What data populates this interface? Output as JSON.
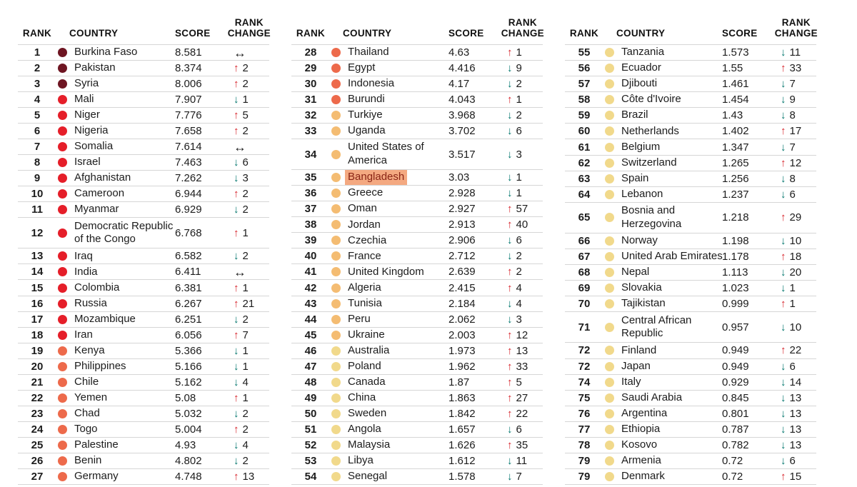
{
  "colors": {
    "maroon": "#6e1522",
    "red": "#e51e29",
    "coral": "#ed6a4b",
    "light_orange": "#f4bc72",
    "yellow": "#f1d98b",
    "up_arrow": "#d6232b",
    "down_arrow": "#00756c",
    "no_change": "#1c1c1c",
    "highlight_bg": "#f4a981",
    "highlight_text": "#8a2516",
    "divider": "#d6d6d6"
  },
  "chart_data": {
    "type": "table",
    "columns": {
      "rank": "RANK",
      "country": "COUNTRY",
      "score": "SCORE",
      "rank_change": "RANK\nCHANGE"
    },
    "tables": [
      {
        "rows": [
          {
            "r": "1",
            "c": "Burkina Faso",
            "s": "8.581",
            "d": "same",
            "v": null,
            "t": "maroon"
          },
          {
            "r": "2",
            "c": "Pakistan",
            "s": "8.374",
            "d": "up",
            "v": "2",
            "t": "maroon"
          },
          {
            "r": "3",
            "c": "Syria",
            "s": "8.006",
            "d": "up",
            "v": "2",
            "t": "maroon"
          },
          {
            "r": "4",
            "c": "Mali",
            "s": "7.907",
            "d": "down",
            "v": "1",
            "t": "red"
          },
          {
            "r": "5",
            "c": "Niger",
            "s": "7.776",
            "d": "up",
            "v": "5",
            "t": "red"
          },
          {
            "r": "6",
            "c": "Nigeria",
            "s": "7.658",
            "d": "up",
            "v": "2",
            "t": "red"
          },
          {
            "r": "7",
            "c": "Somalia",
            "s": "7.614",
            "d": "same",
            "v": null,
            "t": "red"
          },
          {
            "r": "8",
            "c": "Israel",
            "s": "7.463",
            "d": "down",
            "v": "6",
            "t": "red"
          },
          {
            "r": "9",
            "c": "Afghanistan",
            "s": "7.262",
            "d": "down",
            "v": "3",
            "t": "red"
          },
          {
            "r": "10",
            "c": "Cameroon",
            "s": "6.944",
            "d": "up",
            "v": "2",
            "t": "red"
          },
          {
            "r": "11",
            "c": "Myanmar",
            "s": "6.929",
            "d": "down",
            "v": "2",
            "t": "red"
          },
          {
            "r": "12",
            "c": "Democratic Republic\nof the Congo",
            "s": "6.768",
            "d": "up",
            "v": "1",
            "t": "red"
          },
          {
            "r": "13",
            "c": "Iraq",
            "s": "6.582",
            "d": "down",
            "v": "2",
            "t": "red"
          },
          {
            "r": "14",
            "c": "India",
            "s": "6.411",
            "d": "same",
            "v": null,
            "t": "red"
          },
          {
            "r": "15",
            "c": "Colombia",
            "s": "6.381",
            "d": "up",
            "v": "1",
            "t": "red"
          },
          {
            "r": "16",
            "c": "Russia",
            "s": "6.267",
            "d": "up",
            "v": "21",
            "t": "red"
          },
          {
            "r": "17",
            "c": "Mozambique",
            "s": "6.251",
            "d": "down",
            "v": "2",
            "t": "red"
          },
          {
            "r": "18",
            "c": "Iran",
            "s": "6.056",
            "d": "up",
            "v": "7",
            "t": "red"
          },
          {
            "r": "19",
            "c": "Kenya",
            "s": "5.366",
            "d": "down",
            "v": "1",
            "t": "coral"
          },
          {
            "r": "20",
            "c": "Philippines",
            "s": "5.166",
            "d": "down",
            "v": "1",
            "t": "coral"
          },
          {
            "r": "21",
            "c": "Chile",
            "s": "5.162",
            "d": "down",
            "v": "4",
            "t": "coral"
          },
          {
            "r": "22",
            "c": "Yemen",
            "s": "5.08",
            "d": "up",
            "v": "1",
            "t": "coral"
          },
          {
            "r": "23",
            "c": "Chad",
            "s": "5.032",
            "d": "down",
            "v": "2",
            "t": "coral"
          },
          {
            "r": "24",
            "c": "Togo",
            "s": "5.004",
            "d": "up",
            "v": "2",
            "t": "coral"
          },
          {
            "r": "25",
            "c": "Palestine",
            "s": "4.93",
            "d": "down",
            "v": "4",
            "t": "coral"
          },
          {
            "r": "26",
            "c": "Benin",
            "s": "4.802",
            "d": "down",
            "v": "2",
            "t": "coral"
          },
          {
            "r": "27",
            "c": "Germany",
            "s": "4.748",
            "d": "up",
            "v": "13",
            "t": "coral"
          }
        ]
      },
      {
        "rows": [
          {
            "r": "28",
            "c": "Thailand",
            "s": "4.63",
            "d": "up",
            "v": "1",
            "t": "coral"
          },
          {
            "r": "29",
            "c": "Egypt",
            "s": "4.416",
            "d": "down",
            "v": "9",
            "t": "coral"
          },
          {
            "r": "30",
            "c": "Indonesia",
            "s": "4.17",
            "d": "down",
            "v": "2",
            "t": "coral"
          },
          {
            "r": "31",
            "c": "Burundi",
            "s": "4.043",
            "d": "up",
            "v": "1",
            "t": "coral"
          },
          {
            "r": "32",
            "c": "Turkiye",
            "s": "3.968",
            "d": "down",
            "v": "2",
            "t": "light_orange"
          },
          {
            "r": "33",
            "c": "Uganda",
            "s": "3.702",
            "d": "down",
            "v": "6",
            "t": "light_orange"
          },
          {
            "r": "34",
            "c": "United States of\nAmerica",
            "s": "3.517",
            "d": "down",
            "v": "3",
            "t": "light_orange"
          },
          {
            "r": "35",
            "c": "Bangladesh",
            "s": "3.03",
            "d": "down",
            "v": "1",
            "t": "light_orange",
            "hl": true
          },
          {
            "r": "36",
            "c": "Greece",
            "s": "2.928",
            "d": "down",
            "v": "1",
            "t": "light_orange"
          },
          {
            "r": "37",
            "c": "Oman",
            "s": "2.927",
            "d": "up",
            "v": "57",
            "t": "light_orange"
          },
          {
            "r": "38",
            "c": "Jordan",
            "s": "2.913",
            "d": "up",
            "v": "40",
            "t": "light_orange"
          },
          {
            "r": "39",
            "c": "Czechia",
            "s": "2.906",
            "d": "down",
            "v": "6",
            "t": "light_orange"
          },
          {
            "r": "40",
            "c": "France",
            "s": "2.712",
            "d": "down",
            "v": "2",
            "t": "light_orange"
          },
          {
            "r": "41",
            "c": "United Kingdom",
            "s": "2.639",
            "d": "up",
            "v": "2",
            "t": "light_orange"
          },
          {
            "r": "42",
            "c": "Algeria",
            "s": "2.415",
            "d": "up",
            "v": "4",
            "t": "light_orange"
          },
          {
            "r": "43",
            "c": "Tunisia",
            "s": "2.184",
            "d": "down",
            "v": "4",
            "t": "light_orange"
          },
          {
            "r": "44",
            "c": "Peru",
            "s": "2.062",
            "d": "down",
            "v": "3",
            "t": "light_orange"
          },
          {
            "r": "45",
            "c": "Ukraine",
            "s": "2.003",
            "d": "up",
            "v": "12",
            "t": "light_orange"
          },
          {
            "r": "46",
            "c": "Australia",
            "s": "1.973",
            "d": "up",
            "v": "13",
            "t": "yellow"
          },
          {
            "r": "47",
            "c": "Poland",
            "s": "1.962",
            "d": "up",
            "v": "33",
            "t": "yellow"
          },
          {
            "r": "48",
            "c": "Canada",
            "s": "1.87",
            "d": "up",
            "v": "5",
            "t": "yellow"
          },
          {
            "r": "49",
            "c": "China",
            "s": "1.863",
            "d": "up",
            "v": "27",
            "t": "yellow"
          },
          {
            "r": "50",
            "c": "Sweden",
            "s": "1.842",
            "d": "up",
            "v": "22",
            "t": "yellow"
          },
          {
            "r": "51",
            "c": "Angola",
            "s": "1.657",
            "d": "down",
            "v": "6",
            "t": "yellow"
          },
          {
            "r": "52",
            "c": "Malaysia",
            "s": "1.626",
            "d": "up",
            "v": "35",
            "t": "yellow"
          },
          {
            "r": "53",
            "c": "Libya",
            "s": "1.612",
            "d": "down",
            "v": "11",
            "t": "yellow"
          },
          {
            "r": "54",
            "c": "Senegal",
            "s": "1.578",
            "d": "down",
            "v": "7",
            "t": "yellow"
          }
        ]
      },
      {
        "rows": [
          {
            "r": "55",
            "c": "Tanzania",
            "s": "1.573",
            "d": "down",
            "v": "11",
            "t": "yellow"
          },
          {
            "r": "56",
            "c": "Ecuador",
            "s": "1.55",
            "d": "up",
            "v": "33",
            "t": "yellow"
          },
          {
            "r": "57",
            "c": "Djibouti",
            "s": "1.461",
            "d": "down",
            "v": "7",
            "t": "yellow"
          },
          {
            "r": "58",
            "c": "Côte d'Ivoire",
            "s": "1.454",
            "d": "down",
            "v": "9",
            "t": "yellow"
          },
          {
            "r": "59",
            "c": "Brazil",
            "s": "1.43",
            "d": "down",
            "v": "8",
            "t": "yellow"
          },
          {
            "r": "60",
            "c": "Netherlands",
            "s": "1.402",
            "d": "up",
            "v": "17",
            "t": "yellow"
          },
          {
            "r": "61",
            "c": "Belgium",
            "s": "1.347",
            "d": "down",
            "v": "7",
            "t": "yellow"
          },
          {
            "r": "62",
            "c": "Switzerland",
            "s": "1.265",
            "d": "up",
            "v": "12",
            "t": "yellow"
          },
          {
            "r": "63",
            "c": "Spain",
            "s": "1.256",
            "d": "down",
            "v": "8",
            "t": "yellow"
          },
          {
            "r": "64",
            "c": "Lebanon",
            "s": "1.237",
            "d": "down",
            "v": "6",
            "t": "yellow"
          },
          {
            "r": "65",
            "c": "Bosnia and\nHerzegovina",
            "s": "1.218",
            "d": "up",
            "v": "29",
            "t": "yellow"
          },
          {
            "r": "66",
            "c": "Norway",
            "s": "1.198",
            "d": "down",
            "v": "10",
            "t": "yellow"
          },
          {
            "r": "67",
            "c": "United Arab Emirates",
            "s": "1.178",
            "d": "up",
            "v": "18",
            "t": "yellow"
          },
          {
            "r": "68",
            "c": "Nepal",
            "s": "1.113",
            "d": "down",
            "v": "20",
            "t": "yellow"
          },
          {
            "r": "69",
            "c": "Slovakia",
            "s": "1.023",
            "d": "down",
            "v": "1",
            "t": "yellow"
          },
          {
            "r": "70",
            "c": "Tajikistan",
            "s": "0.999",
            "d": "up",
            "v": "1",
            "t": "yellow"
          },
          {
            "r": "71",
            "c": "Central African\nRepublic",
            "s": "0.957",
            "d": "down",
            "v": "10",
            "t": "yellow"
          },
          {
            "r": "72",
            "c": "Finland",
            "s": "0.949",
            "d": "up",
            "v": "22",
            "t": "yellow"
          },
          {
            "r": "72",
            "c": "Japan",
            "s": "0.949",
            "d": "down",
            "v": "6",
            "t": "yellow"
          },
          {
            "r": "74",
            "c": "Italy",
            "s": "0.929",
            "d": "down",
            "v": "14",
            "t": "yellow"
          },
          {
            "r": "75",
            "c": "Saudi Arabia",
            "s": "0.845",
            "d": "down",
            "v": "13",
            "t": "yellow"
          },
          {
            "r": "76",
            "c": "Argentina",
            "s": "0.801",
            "d": "down",
            "v": "13",
            "t": "yellow"
          },
          {
            "r": "77",
            "c": "Ethiopia",
            "s": "0.787",
            "d": "down",
            "v": "13",
            "t": "yellow"
          },
          {
            "r": "78",
            "c": "Kosovo",
            "s": "0.782",
            "d": "down",
            "v": "13",
            "t": "yellow"
          },
          {
            "r": "79",
            "c": "Armenia",
            "s": "0.72",
            "d": "down",
            "v": "6",
            "t": "yellow"
          },
          {
            "r": "79",
            "c": "Denmark",
            "s": "0.72",
            "d": "up",
            "v": "15",
            "t": "yellow"
          }
        ]
      }
    ]
  }
}
